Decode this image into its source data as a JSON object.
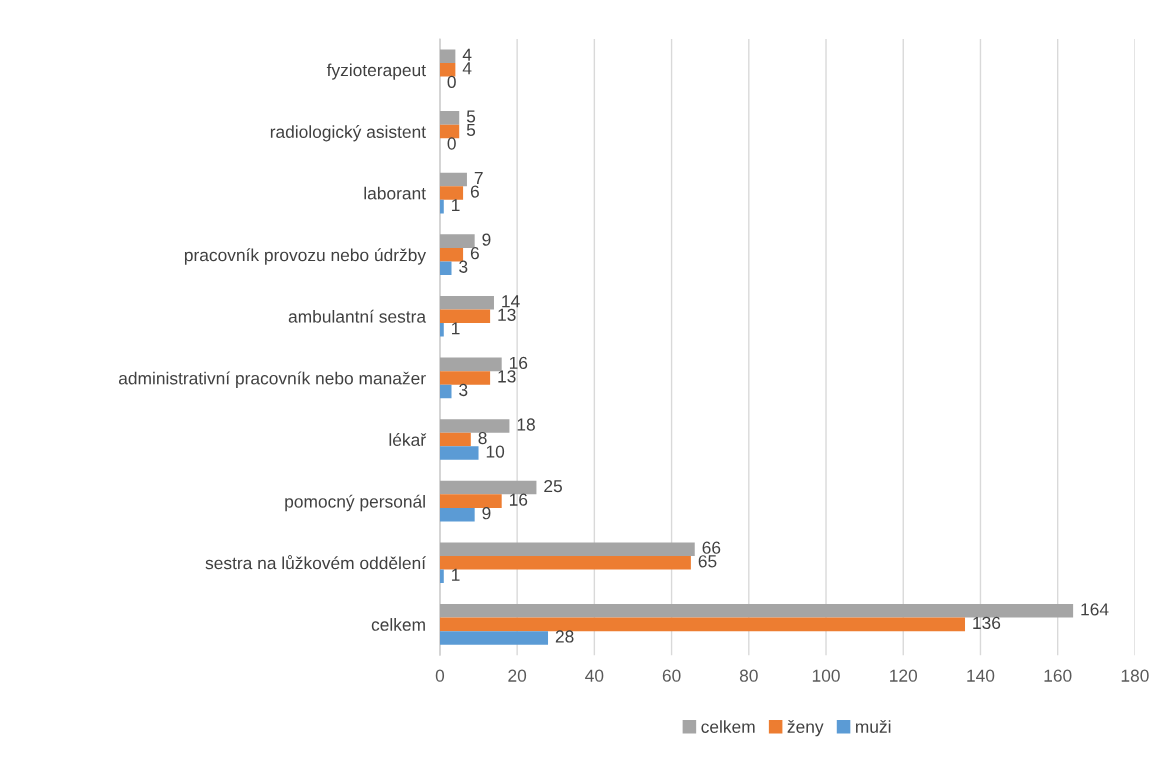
{
  "chart_data": {
    "type": "bar",
    "orientation": "horizontal",
    "categories": [
      "fyzioterapeut",
      "radiologický asistent",
      "laborant",
      "pracovník provozu nebo údržby",
      "ambulantní sestra",
      "administrativní pracovník nebo manažer",
      "lékař",
      "pomocný personál",
      "sestra na lůžkovém oddělení",
      "celkem"
    ],
    "series": [
      {
        "name": "celkem",
        "color": "#a5a5a5",
        "values": [
          4,
          5,
          7,
          9,
          14,
          16,
          18,
          25,
          66,
          164
        ]
      },
      {
        "name": "ženy",
        "color": "#ed7d31",
        "values": [
          4,
          5,
          6,
          6,
          13,
          13,
          8,
          16,
          65,
          136
        ]
      },
      {
        "name": "muži",
        "color": "#5b9bd5",
        "values": [
          0,
          0,
          1,
          3,
          1,
          3,
          10,
          9,
          1,
          28
        ]
      }
    ],
    "xlim": [
      0,
      180
    ],
    "xticks": [
      0,
      20,
      40,
      60,
      80,
      100,
      120,
      140,
      160,
      180
    ],
    "grid": "x",
    "legend": "bottom",
    "data_labels": true
  }
}
